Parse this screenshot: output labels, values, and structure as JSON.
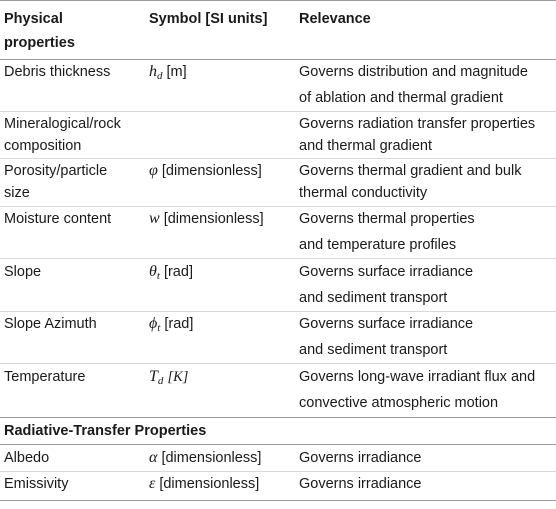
{
  "header": {
    "col1_line1": "Physical",
    "col1_line2": "properties",
    "col2": "Symbol [SI units]",
    "col3": "Relevance"
  },
  "rows": [
    {
      "property": [
        "Debris thickness"
      ],
      "sym": "h",
      "sub": "d",
      "unit": "[m]",
      "relevance": [
        "Governs distribution and magnitude",
        "of ablation and thermal gradient"
      ]
    },
    {
      "property": [
        "Mineralogical/rock",
        "composition"
      ],
      "sym": "",
      "sub": "",
      "unit": "",
      "relevance": [
        "Governs radiation transfer properties",
        "and thermal gradient"
      ]
    },
    {
      "property": [
        "Porosity/particle",
        "size"
      ],
      "sym": "φ",
      "sub": "",
      "unit": "[dimensionless]",
      "relevance": [
        "Governs thermal gradient and bulk",
        "thermal conductivity"
      ]
    },
    {
      "property": [
        "Moisture content"
      ],
      "sym": "w",
      "sub": "",
      "unit": "[dimensionless]",
      "relevance": [
        "Governs thermal properties",
        "and temperature profiles"
      ]
    },
    {
      "property": [
        "Slope"
      ],
      "sym": "θ",
      "sub": "t",
      "unit": "[rad]",
      "relevance": [
        "Governs surface irradiance",
        "and sediment transport"
      ]
    },
    {
      "property": [
        "Slope Azimuth"
      ],
      "sym": "ϕ",
      "sub": "t",
      "unit": "[rad]",
      "relevance": [
        "Governs surface irradiance",
        "and sediment transport"
      ]
    },
    {
      "property": [
        "Temperature"
      ],
      "sym": "T",
      "sub": "d",
      "unit": "[K]",
      "relevance": [
        "Governs long-wave irradiant flux and",
        "convective atmospheric motion"
      ]
    }
  ],
  "section2": {
    "title": "Radiative-Transfer Properties",
    "rows": [
      {
        "property": "Albedo",
        "sym": "α",
        "unit": "[dimensionless]",
        "relevance": "Governs irradiance"
      },
      {
        "property": "Emissivity",
        "sym": "ε",
        "unit": "[dimensionless]",
        "relevance": "Governs irradiance"
      }
    ]
  }
}
